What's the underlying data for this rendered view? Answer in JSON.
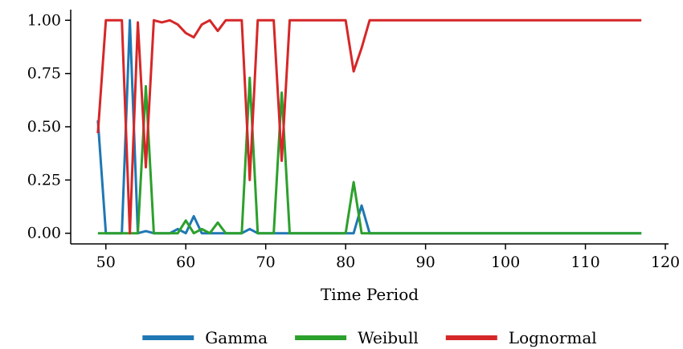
{
  "chart_data": {
    "type": "line",
    "title": "",
    "xlabel": "Time Period",
    "ylabel": "",
    "xlim": [
      45.6,
      120.4
    ],
    "ylim": [
      -0.05,
      1.05
    ],
    "xticks": [
      50,
      60,
      70,
      80,
      90,
      100,
      110,
      120
    ],
    "yticks": [
      0.0,
      0.25,
      0.5,
      0.75,
      1.0
    ],
    "ytick_labels": [
      "0.00",
      "0.25",
      "0.50",
      "0.75",
      "1.00"
    ],
    "grid": false,
    "legend_position": "bottom",
    "x": [
      49,
      50,
      51,
      52,
      53,
      54,
      55,
      56,
      57,
      58,
      59,
      60,
      61,
      62,
      63,
      64,
      65,
      66,
      67,
      68,
      69,
      70,
      71,
      72,
      73,
      74,
      75,
      76,
      77,
      78,
      79,
      80,
      81,
      82,
      83,
      84,
      85,
      86,
      87,
      88,
      89,
      90,
      91,
      92,
      93,
      94,
      95,
      96,
      97,
      98,
      99,
      100,
      101,
      102,
      103,
      104,
      105,
      106,
      107,
      108,
      109,
      110,
      111,
      112,
      113,
      114,
      115,
      116,
      117
    ],
    "series": [
      {
        "name": "Gamma",
        "color": "#1f77b4",
        "values": [
          0.53,
          0.0,
          0.0,
          0.0,
          1.0,
          0.0,
          0.01,
          0.0,
          0.0,
          0.0,
          0.02,
          0.0,
          0.08,
          0.0,
          0.0,
          0.0,
          0.0,
          0.0,
          0.0,
          0.02,
          0.0,
          0.0,
          0.0,
          0.0,
          0.0,
          0.0,
          0.0,
          0.0,
          0.0,
          0.0,
          0.0,
          0.0,
          0.0,
          0.13,
          0.0,
          0.0,
          0.0,
          0.0,
          0.0,
          0.0,
          0.0,
          0.0,
          0.0,
          0.0,
          0.0,
          0.0,
          0.0,
          0.0,
          0.0,
          0.0,
          0.0,
          0.0,
          0.0,
          0.0,
          0.0,
          0.0,
          0.0,
          0.0,
          0.0,
          0.0,
          0.0,
          0.0,
          0.0,
          0.0,
          0.0,
          0.0,
          0.0,
          0.0,
          0.0
        ]
      },
      {
        "name": "Weibull",
        "color": "#2ca02c",
        "values": [
          0.0,
          0.0,
          0.0,
          0.0,
          0.0,
          0.0,
          0.69,
          0.0,
          0.0,
          0.0,
          0.0,
          0.06,
          0.0,
          0.02,
          0.0,
          0.05,
          0.0,
          0.0,
          0.0,
          0.73,
          0.0,
          0.0,
          0.0,
          0.66,
          0.0,
          0.0,
          0.0,
          0.0,
          0.0,
          0.0,
          0.0,
          0.0,
          0.24,
          0.0,
          0.0,
          0.0,
          0.0,
          0.0,
          0.0,
          0.0,
          0.0,
          0.0,
          0.0,
          0.0,
          0.0,
          0.0,
          0.0,
          0.0,
          0.0,
          0.0,
          0.0,
          0.0,
          0.0,
          0.0,
          0.0,
          0.0,
          0.0,
          0.0,
          0.0,
          0.0,
          0.0,
          0.0,
          0.0,
          0.0,
          0.0,
          0.0,
          0.0,
          0.0,
          0.0
        ]
      },
      {
        "name": "Lognormal",
        "color": "#d62728",
        "values": [
          0.47,
          1.0,
          1.0,
          1.0,
          0.0,
          0.99,
          0.31,
          1.0,
          0.99,
          1.0,
          0.98,
          0.94,
          0.92,
          0.98,
          1.0,
          0.95,
          1.0,
          1.0,
          1.0,
          0.25,
          1.0,
          1.0,
          1.0,
          0.34,
          1.0,
          1.0,
          1.0,
          1.0,
          1.0,
          1.0,
          1.0,
          1.0,
          0.76,
          0.87,
          1.0,
          1.0,
          1.0,
          1.0,
          1.0,
          1.0,
          1.0,
          1.0,
          1.0,
          1.0,
          1.0,
          1.0,
          1.0,
          1.0,
          1.0,
          1.0,
          1.0,
          1.0,
          1.0,
          1.0,
          1.0,
          1.0,
          1.0,
          1.0,
          1.0,
          1.0,
          1.0,
          1.0,
          1.0,
          1.0,
          1.0,
          1.0,
          1.0,
          1.0,
          1.0
        ]
      }
    ]
  }
}
